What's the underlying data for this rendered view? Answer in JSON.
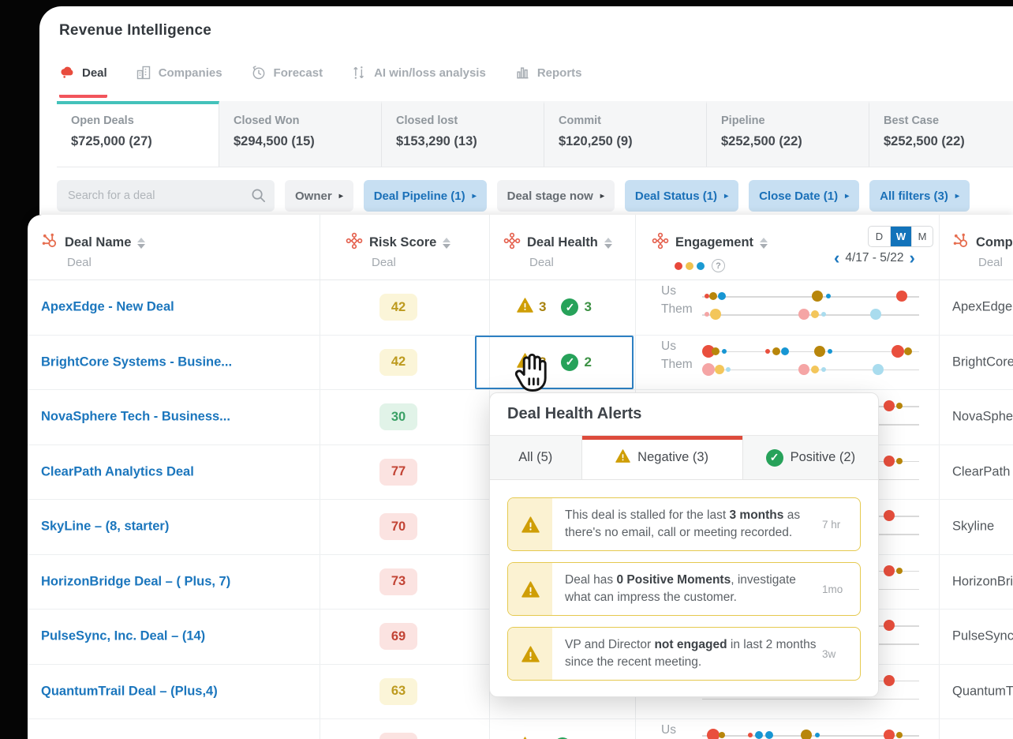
{
  "app": {
    "title": "Revenue Intelligence"
  },
  "nav": {
    "tabs": [
      {
        "label": "Deal",
        "icon": "deal-icon",
        "active": true
      },
      {
        "label": "Companies",
        "icon": "companies-icon",
        "active": false
      },
      {
        "label": "Forecast",
        "icon": "forecast-icon",
        "active": false
      },
      {
        "label": "AI win/loss analysis",
        "icon": "ai-winloss-icon",
        "active": false
      },
      {
        "label": "Reports",
        "icon": "reports-icon",
        "active": false
      }
    ]
  },
  "summary_cards": [
    {
      "label": "Open Deals",
      "value": "$725,000 (27)",
      "active": true
    },
    {
      "label": "Closed Won",
      "value": "$294,500 (15)",
      "active": false
    },
    {
      "label": "Closed lost",
      "value": "$153,290 (13)",
      "active": false
    },
    {
      "label": "Commit",
      "value": "$120,250 (9)",
      "active": false
    },
    {
      "label": "Pipeline",
      "value": "$252,500 (22)",
      "active": false
    },
    {
      "label": "Best Case",
      "value": "$252,500 (22)",
      "active": false
    }
  ],
  "filters": {
    "search_placeholder": "Search for a deal",
    "chips": [
      {
        "label": "Owner",
        "style": "plain"
      },
      {
        "label": "Deal Pipeline (1)",
        "style": "active"
      },
      {
        "label": "Deal stage now",
        "style": "plain"
      },
      {
        "label": "Deal Status (1)",
        "style": "active"
      },
      {
        "label": "Close Date (1)",
        "style": "active"
      },
      {
        "label": "All filters (3)",
        "style": "active"
      }
    ]
  },
  "table": {
    "columns": {
      "deal_name": {
        "title": "Deal Name",
        "subtitle": "Deal"
      },
      "risk_score": {
        "title": "Risk Score",
        "subtitle": "Deal"
      },
      "deal_health": {
        "title": "Deal Health",
        "subtitle": "Deal"
      },
      "engagement": {
        "title": "Engagement"
      },
      "company": {
        "title": "Company",
        "subtitle": "Deal"
      }
    },
    "engagement_controls": {
      "granularity": [
        "D",
        "W",
        "M"
      ],
      "selected": "W",
      "date_range": "4/17 - 5/22",
      "help_label": "?",
      "legend_colors": [
        "#e8483b",
        "#efc14e",
        "#1b9ad2"
      ]
    },
    "engagement_labels": [
      "Us",
      "Them"
    ],
    "dot_colors": {
      "red": "#e94f3d",
      "olive": "#b8860b",
      "blue": "#1796d3",
      "pink": "#f5a5a5",
      "yellow": "#f3c65b",
      "lightblue": "#a9dcee"
    },
    "rows": [
      {
        "name": "ApexEdge - New Deal",
        "risk": {
          "value": "42",
          "level": "yellow"
        },
        "health": {
          "negative": "3",
          "positive": "3",
          "selected": false
        },
        "company": "ApexEdge",
        "us": [
          [
            2,
            3,
            "red"
          ],
          [
            5,
            5,
            "olive"
          ],
          [
            9,
            5,
            "blue"
          ],
          [
            53,
            7,
            "olive"
          ],
          [
            58,
            3,
            "blue"
          ],
          [
            92,
            7,
            "red"
          ]
        ],
        "them": [
          [
            2,
            3,
            "pink"
          ],
          [
            6,
            7,
            "yellow"
          ],
          [
            47,
            7,
            "pink"
          ],
          [
            52,
            5,
            "yellow"
          ],
          [
            56,
            3,
            "lightblue"
          ],
          [
            80,
            7,
            "lightblue"
          ]
        ]
      },
      {
        "name": "BrightCore Systems - Busine...",
        "risk": {
          "value": "42",
          "level": "yellow"
        },
        "health": {
          "negative": "3",
          "positive": "2",
          "selected": true
        },
        "company": "BrightCore",
        "us": [
          [
            3,
            8,
            "red"
          ],
          [
            6,
            5,
            "olive"
          ],
          [
            10,
            3,
            "blue"
          ],
          [
            30,
            3,
            "red"
          ],
          [
            34,
            5,
            "olive"
          ],
          [
            38,
            5,
            "blue"
          ],
          [
            54,
            7,
            "olive"
          ],
          [
            59,
            3,
            "blue"
          ],
          [
            90,
            8,
            "red"
          ],
          [
            95,
            5,
            "olive"
          ]
        ],
        "them": [
          [
            3,
            8,
            "pink"
          ],
          [
            8,
            6,
            "yellow"
          ],
          [
            12,
            3,
            "lightblue"
          ],
          [
            47,
            7,
            "pink"
          ],
          [
            52,
            5,
            "yellow"
          ],
          [
            56,
            3,
            "lightblue"
          ],
          [
            81,
            7,
            "lightblue"
          ]
        ]
      },
      {
        "name": "NovaSphere Tech - Business...",
        "risk": {
          "value": "30",
          "level": "green"
        },
        "health": null,
        "company": "NovaSphere",
        "us": [
          [
            86,
            7,
            "red"
          ],
          [
            91,
            4,
            "olive"
          ]
        ],
        "them": []
      },
      {
        "name": "ClearPath Analytics Deal",
        "risk": {
          "value": "77",
          "level": "red"
        },
        "health": null,
        "company": "ClearPath",
        "us": [
          [
            86,
            7,
            "red"
          ],
          [
            91,
            4,
            "olive"
          ]
        ],
        "them": []
      },
      {
        "name": "SkyLine – (8, starter)",
        "risk": {
          "value": "70",
          "level": "red"
        },
        "health": null,
        "company": "Skyline",
        "us": [
          [
            86,
            7,
            "red"
          ]
        ],
        "them": []
      },
      {
        "name": "HorizonBridge Deal – ( Plus, 7)",
        "risk": {
          "value": "73",
          "level": "red"
        },
        "health": null,
        "company": "HorizonBridge",
        "us": [
          [
            86,
            7,
            "red"
          ],
          [
            91,
            4,
            "olive"
          ]
        ],
        "them": []
      },
      {
        "name": "PulseSync, Inc. Deal – (14)",
        "risk": {
          "value": "69",
          "level": "red"
        },
        "health": null,
        "company": "PulseSync",
        "us": [
          [
            86,
            7,
            "red"
          ]
        ],
        "them": []
      },
      {
        "name": "QuantumTrail Deal – (Plus,4)",
        "risk": {
          "value": "63",
          "level": "yellow"
        },
        "health": null,
        "company": "QuantumTrail",
        "us": [
          [
            86,
            7,
            "red"
          ]
        ],
        "them": []
      },
      {
        "name": "",
        "risk": {
          "value": "",
          "level": "red"
        },
        "health": {
          "negative": "",
          "positive": "",
          "selected": false
        },
        "company": "",
        "us": [
          [
            5,
            8,
            "red"
          ],
          [
            9,
            4,
            "olive"
          ],
          [
            22,
            3,
            "red"
          ],
          [
            26,
            5,
            "blue"
          ],
          [
            31,
            5,
            "blue"
          ],
          [
            48,
            7,
            "olive"
          ],
          [
            53,
            3,
            "blue"
          ],
          [
            86,
            7,
            "red"
          ],
          [
            91,
            4,
            "olive"
          ]
        ],
        "them": []
      }
    ]
  },
  "popup": {
    "title": "Deal Health Alerts",
    "tabs": [
      {
        "label": "All (5)",
        "icon": null,
        "active": false
      },
      {
        "label": "Negative (3)",
        "icon": "warning-icon",
        "active": true
      },
      {
        "label": "Positive (2)",
        "icon": "check-icon",
        "active": false
      }
    ],
    "alerts": [
      {
        "segments": [
          {
            "t": "This deal is stalled for the last "
          },
          {
            "t": "3 months",
            "b": true
          },
          {
            "t": " as there's no email, call or meeting recorded."
          }
        ],
        "time": "7 hr"
      },
      {
        "segments": [
          {
            "t": "Deal has "
          },
          {
            "t": "0 Positive Moments",
            "b": true
          },
          {
            "t": ", investigate what can impress the customer."
          }
        ],
        "time": "1mo"
      },
      {
        "segments": [
          {
            "t": "VP and Director "
          },
          {
            "t": "not engaged",
            "b": true
          },
          {
            "t": " in last 2 months since the recent meeting."
          }
        ],
        "time": "3w"
      }
    ]
  }
}
